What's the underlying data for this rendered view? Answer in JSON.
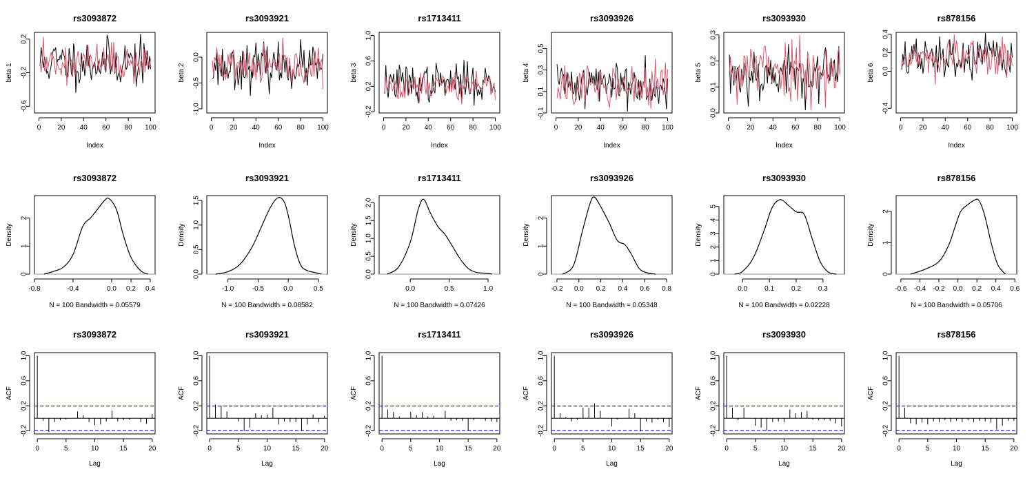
{
  "colors": {
    "series1": "#000000",
    "series2": "#DF536B",
    "ci": "#2222CC",
    "zero": "#999999"
  },
  "snps": [
    "rs3093872",
    "rs3093921",
    "rs1713411",
    "rs3093926",
    "rs3093930",
    "rs878156"
  ],
  "trace_ylabels": [
    "beta 1",
    "beta 2",
    "beta 3",
    "beta 4",
    "beta 5",
    "beta 6"
  ],
  "density_notes": [
    "N = 100   Bandwidth = 0.05579",
    "N = 100   Bandwidth = 0.08582",
    "N = 100   Bandwidth = 0.07426",
    "N = 100   Bandwidth = 0.05348",
    "N = 100   Bandwidth = 0.02228",
    "N = 100   Bandwidth = 0.05706"
  ],
  "chart_data": [
    {
      "row": "trace",
      "type": "line",
      "xlabel": "Index",
      "xlim": [
        0,
        100
      ],
      "xticks": [
        0,
        20,
        40,
        60,
        80,
        100
      ],
      "panels": [
        {
          "title": "rs3093872",
          "ylabel": "beta 1",
          "ylim": [
            -0.68,
            0.28
          ],
          "yticks": [
            -0.6,
            -0.2,
            0.2
          ],
          "mean1": -0.08,
          "amp1": 0.19,
          "mean2": -0.08,
          "amp2": 0.15,
          "seed": 11
        },
        {
          "title": "rs3093921",
          "ylabel": "beta 2",
          "ylim": [
            -1.08,
            0.48
          ],
          "yticks": [
            -1.0,
            -0.5,
            0.0
          ],
          "mean1": -0.18,
          "amp1": 0.28,
          "mean2": -0.2,
          "amp2": 0.25,
          "seed": 23
        },
        {
          "title": "rs1713411",
          "ylabel": "beta 3",
          "ylim": [
            -0.22,
            1.05
          ],
          "yticks": [
            -0.2,
            0.2,
            0.6,
            1.0
          ],
          "mean1": 0.25,
          "amp1": 0.2,
          "mean2": 0.22,
          "amp2": 0.17,
          "seed": 37
        },
        {
          "title": "rs3093926",
          "ylabel": "beta 4",
          "ylim": [
            -0.1,
            0.65
          ],
          "yticks": [
            -0.1,
            0.1,
            0.3,
            0.5
          ],
          "mean1": 0.18,
          "amp1": 0.14,
          "mean2": 0.15,
          "amp2": 0.13,
          "seed": 41
        },
        {
          "title": "rs3093930",
          "ylabel": "beta 5",
          "ylim": [
            0.0,
            0.31
          ],
          "yticks": [
            0.0,
            0.1,
            0.2,
            0.3
          ],
          "mean1": 0.15,
          "amp1": 0.07,
          "mean2": 0.17,
          "amp2": 0.08,
          "seed": 53
        },
        {
          "title": "rs878156",
          "ylabel": "beta 6",
          "ylim": [
            -0.45,
            0.42
          ],
          "yticks": [
            -0.4,
            0.0,
            0.2,
            0.4
          ],
          "mean1": 0.13,
          "amp1": 0.15,
          "mean2": 0.14,
          "amp2": 0.13,
          "seed": 67
        }
      ],
      "series": [
        "chain 1 (black)",
        "chain 2 (red)"
      ]
    },
    {
      "row": "density",
      "type": "line",
      "ylabel": "Density",
      "panels": [
        {
          "title": "rs3093872",
          "xlim": [
            -0.8,
            0.45
          ],
          "xticks": [
            -0.8,
            -0.4,
            0.0,
            0.2,
            0.4
          ],
          "ylim": [
            0,
            2.8
          ],
          "yticks": [
            0.0,
            1.0,
            2.0
          ],
          "pdf_x": [
            -0.7,
            -0.6,
            -0.5,
            -0.4,
            -0.3,
            -0.22,
            -0.15,
            -0.08,
            -0.03,
            0.05,
            0.12,
            0.2,
            0.3,
            0.38
          ],
          "pdf_y": [
            0.0,
            0.1,
            0.25,
            0.7,
            1.7,
            2.0,
            2.3,
            2.6,
            2.7,
            2.3,
            1.4,
            0.6,
            0.12,
            0.0
          ]
        },
        {
          "title": "rs3093921",
          "xlim": [
            -1.35,
            0.65
          ],
          "xticks": [
            -1.0,
            -0.5,
            0.0,
            0.5
          ],
          "ylim": [
            0,
            1.6
          ],
          "yticks": [
            0.0,
            0.5,
            1.0,
            1.5
          ],
          "pdf_x": [
            -1.2,
            -1.0,
            -0.8,
            -0.6,
            -0.45,
            -0.3,
            -0.18,
            -0.08,
            0.0,
            0.1,
            0.2,
            0.3,
            0.45,
            0.55
          ],
          "pdf_y": [
            0.0,
            0.05,
            0.2,
            0.55,
            0.95,
            1.35,
            1.55,
            1.5,
            1.2,
            0.6,
            0.2,
            0.08,
            0.03,
            0.0
          ]
        },
        {
          "title": "rs1713411",
          "xlim": [
            -0.4,
            1.15
          ],
          "xticks": [
            0.0,
            0.5,
            1.0
          ],
          "ylim": [
            0,
            2.2
          ],
          "yticks": [
            0.0,
            0.5,
            1.0,
            1.5,
            2.0
          ],
          "pdf_x": [
            -0.3,
            -0.15,
            0.0,
            0.1,
            0.17,
            0.25,
            0.35,
            0.45,
            0.55,
            0.65,
            0.75,
            0.85,
            1.0,
            1.05
          ],
          "pdf_y": [
            0.0,
            0.2,
            0.9,
            1.8,
            2.1,
            1.75,
            1.35,
            1.1,
            0.75,
            0.4,
            0.15,
            0.05,
            0.02,
            0.0
          ]
        },
        {
          "title": "rs3093926",
          "xlim": [
            -0.25,
            0.85
          ],
          "xticks": [
            -0.2,
            0.0,
            0.2,
            0.4,
            0.6,
            0.8
          ],
          "ylim": [
            0,
            2.8
          ],
          "yticks": [
            0.0,
            1.0,
            2.0
          ],
          "pdf_x": [
            -0.15,
            -0.05,
            0.03,
            0.1,
            0.14,
            0.2,
            0.28,
            0.35,
            0.42,
            0.48,
            0.55,
            0.62,
            0.7
          ],
          "pdf_y": [
            0.0,
            0.3,
            1.5,
            2.5,
            2.75,
            2.4,
            1.8,
            1.2,
            1.05,
            0.7,
            0.2,
            0.05,
            0.0
          ]
        },
        {
          "title": "rs3093930",
          "xlim": [
            -0.07,
            0.38
          ],
          "xticks": [
            0.0,
            0.1,
            0.2,
            0.3
          ],
          "ylim": [
            0,
            5.8
          ],
          "yticks": [
            0,
            1,
            2,
            3,
            4,
            5
          ],
          "pdf_x": [
            -0.03,
            0.0,
            0.04,
            0.08,
            0.11,
            0.14,
            0.17,
            0.2,
            0.23,
            0.26,
            0.29,
            0.32,
            0.35
          ],
          "pdf_y": [
            0.0,
            0.2,
            1.2,
            3.2,
            4.9,
            5.5,
            5.1,
            4.6,
            4.4,
            2.6,
            0.9,
            0.15,
            0.0
          ]
        },
        {
          "title": "rs878156",
          "xlim": [
            -0.65,
            0.62
          ],
          "xticks": [
            -0.6,
            -0.4,
            -0.2,
            0.0,
            0.2,
            0.4,
            0.6
          ],
          "ylim": [
            0,
            2.5
          ],
          "yticks": [
            0.0,
            1.0,
            2.0
          ],
          "pdf_x": [
            -0.5,
            -0.35,
            -0.2,
            -0.1,
            -0.03,
            0.03,
            0.1,
            0.17,
            0.22,
            0.28,
            0.35,
            0.42,
            0.5
          ],
          "pdf_y": [
            0.0,
            0.15,
            0.4,
            0.9,
            1.5,
            2.0,
            2.2,
            2.35,
            2.35,
            1.9,
            1.0,
            0.3,
            0.0
          ]
        }
      ]
    },
    {
      "row": "acf",
      "type": "bar",
      "xlabel": "Lag",
      "ylabel": "ACF",
      "xlim": [
        -0.5,
        20.5
      ],
      "xticks": [
        0,
        5,
        10,
        15,
        20
      ],
      "panels": [
        {
          "title": "rs3093872",
          "ylim": [
            -0.25,
            1.05
          ],
          "yticks": [
            -0.2,
            0.2,
            0.6,
            1.0
          ],
          "ci": 0.196,
          "acf": [
            1.0,
            -0.04,
            -0.22,
            -0.06,
            -0.03,
            -0.02,
            0.0,
            0.11,
            0.05,
            -0.06,
            -0.11,
            -0.1,
            -0.05,
            0.12,
            -0.05,
            -0.03,
            -0.02,
            0.0,
            -0.06,
            -0.09,
            0.07
          ]
        },
        {
          "title": "rs3093921",
          "ylim": [
            -0.25,
            1.05
          ],
          "yticks": [
            -0.2,
            0.2,
            0.6,
            1.0
          ],
          "ci": 0.196,
          "acf": [
            1.0,
            0.22,
            0.19,
            0.11,
            0.0,
            -0.05,
            -0.2,
            -0.15,
            0.08,
            0.05,
            0.06,
            0.17,
            -0.1,
            -0.05,
            -0.06,
            -0.06,
            -0.2,
            -0.1,
            0.06,
            -0.06,
            0.04
          ]
        },
        {
          "title": "rs1713411",
          "ylim": [
            -0.25,
            1.05
          ],
          "yticks": [
            -0.2,
            0.2,
            0.6,
            1.0
          ],
          "ci": 0.196,
          "acf": [
            1.0,
            0.14,
            0.1,
            0.03,
            0.0,
            0.1,
            0.05,
            0.1,
            0.03,
            0.04,
            0.0,
            0.12,
            -0.04,
            -0.03,
            -0.04,
            -0.2,
            -0.03,
            0.0,
            -0.04,
            -0.05,
            -0.06
          ]
        },
        {
          "title": "rs3093926",
          "ylim": [
            -0.25,
            1.05
          ],
          "yticks": [
            -0.2,
            0.2,
            0.6,
            1.0
          ],
          "ci": 0.196,
          "acf": [
            1.0,
            0.08,
            0.02,
            -0.05,
            -0.02,
            0.17,
            0.17,
            0.24,
            0.12,
            0.0,
            -0.13,
            -0.02,
            0.0,
            0.15,
            0.08,
            -0.21,
            -0.05,
            -0.07,
            -0.02,
            -0.06,
            -0.14
          ]
        },
        {
          "title": "rs3093930",
          "ylim": [
            -0.25,
            1.05
          ],
          "yticks": [
            -0.2,
            0.2,
            0.6,
            1.0
          ],
          "ci": 0.196,
          "acf": [
            1.0,
            0.17,
            -0.03,
            0.17,
            0.0,
            -0.12,
            -0.15,
            -0.2,
            -0.06,
            -0.05,
            -0.06,
            0.14,
            0.08,
            0.1,
            0.12,
            -0.02,
            -0.03,
            -0.03,
            -0.04,
            -0.08,
            -0.13
          ]
        },
        {
          "title": "rs878156",
          "ylim": [
            -0.25,
            1.05
          ],
          "yticks": [
            -0.2,
            0.2,
            0.6,
            1.0
          ],
          "ci": 0.196,
          "acf": [
            1.0,
            0.17,
            -0.08,
            -0.1,
            -0.07,
            -0.1,
            -0.05,
            -0.06,
            -0.03,
            -0.06,
            -0.04,
            -0.06,
            -0.03,
            -0.06,
            -0.04,
            -0.05,
            -0.07,
            -0.18,
            -0.12,
            -0.04,
            -0.04
          ]
        }
      ]
    }
  ]
}
